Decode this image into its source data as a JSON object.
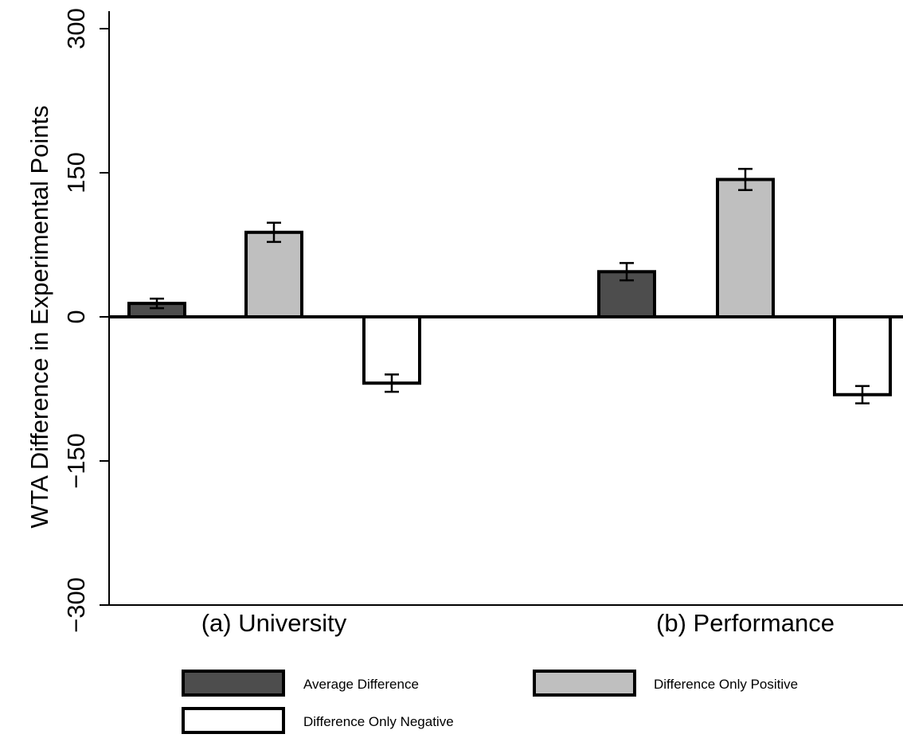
{
  "chart_data": {
    "type": "bar",
    "title": "",
    "xlabel": "",
    "ylabel": "WTA Difference in Experimental Points",
    "ylim": [
      -300,
      300
    ],
    "yticks": [
      -300,
      -150,
      0,
      150,
      300
    ],
    "yticks_display": [
      "−300",
      "−150",
      "0",
      "150",
      "300"
    ],
    "categories": [
      "(a) University",
      "(b) Performance"
    ],
    "series": [
      {
        "name": "Average Difference",
        "values": [
          14,
          47
        ],
        "errors": [
          5,
          9
        ],
        "color": "#4d4d4d"
      },
      {
        "name": "Difference Only Positive",
        "values": [
          88,
          143
        ],
        "errors": [
          10,
          11
        ],
        "color": "#bfbfbf"
      },
      {
        "name": "Difference Only Negative",
        "values": [
          -69,
          -81
        ],
        "errors": [
          9,
          9
        ],
        "color": "#ffffff"
      }
    ],
    "grid": false,
    "legend_position": "bottom"
  }
}
